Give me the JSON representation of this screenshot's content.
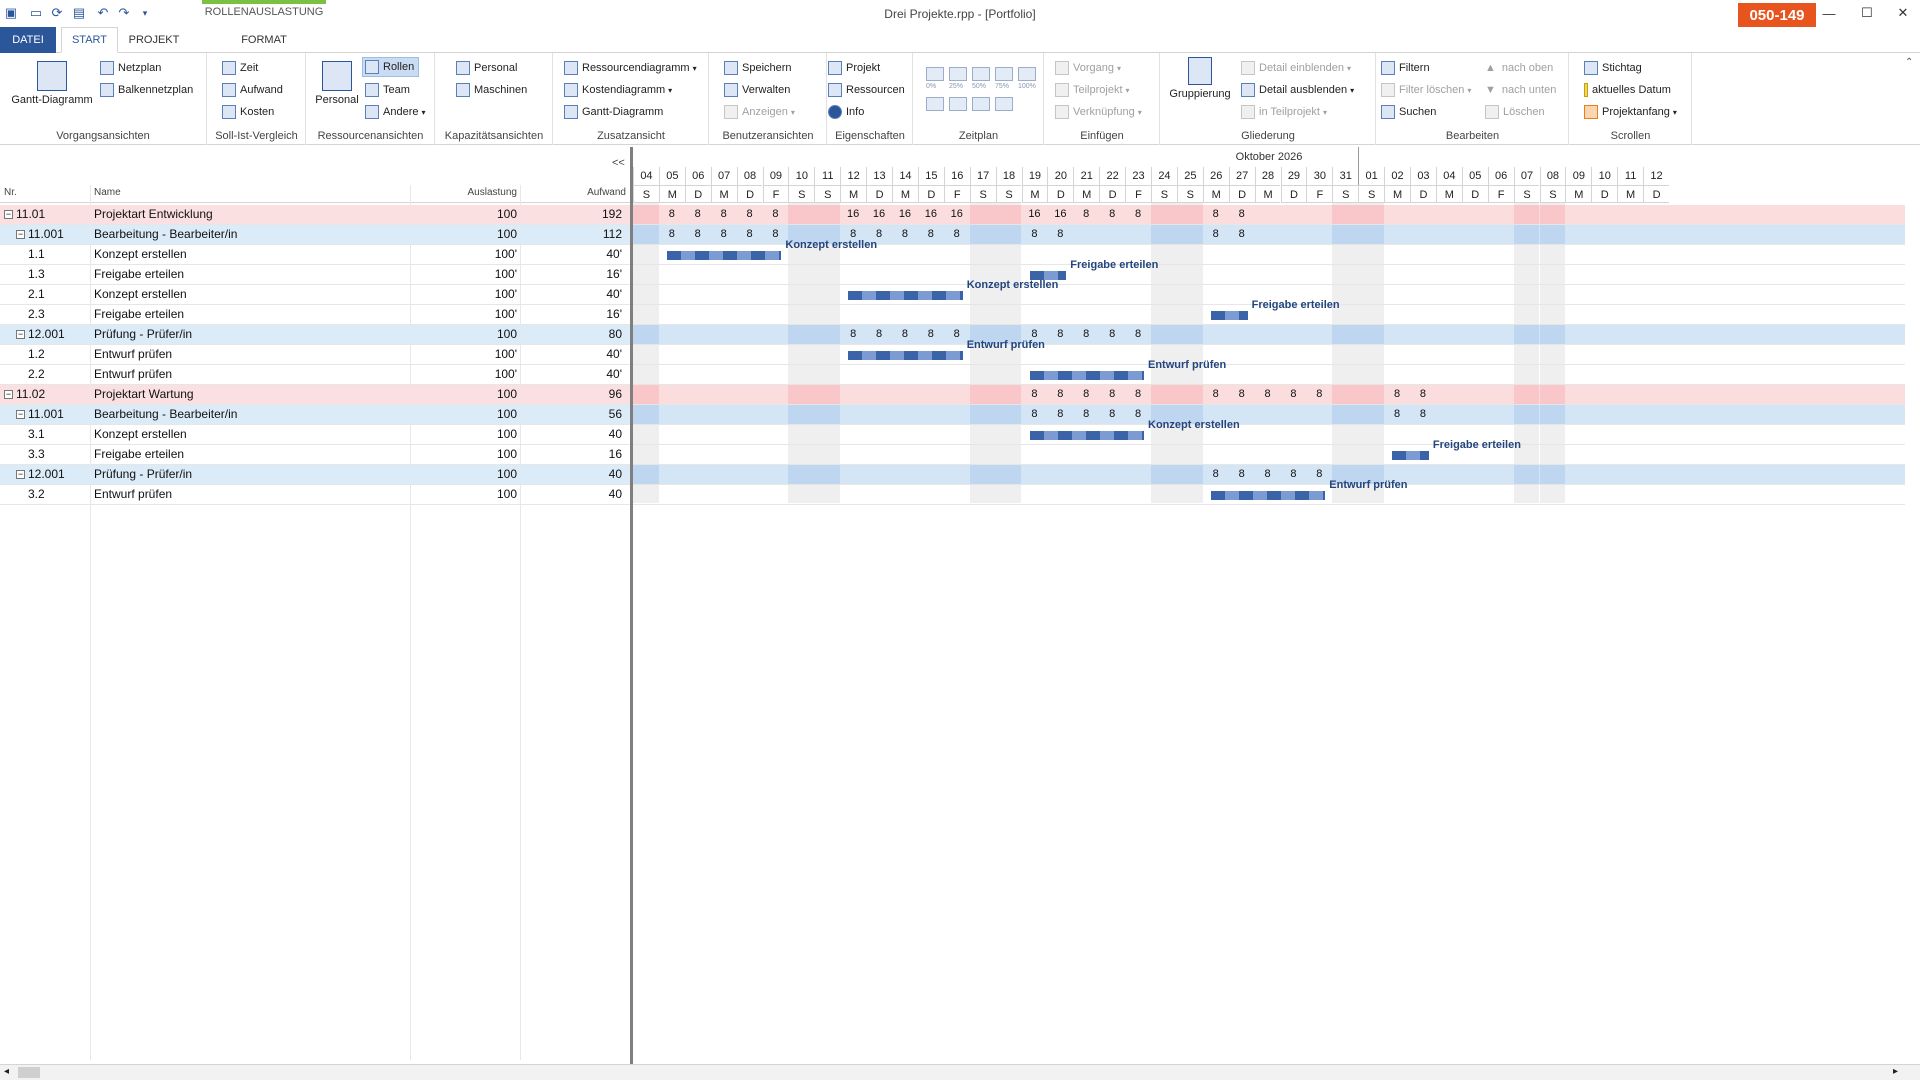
{
  "window": {
    "title": "Drei Projekte.rpp - [Portfolio]",
    "badge": "050-149",
    "context_tab": "ROLLENAUSLASTUNG"
  },
  "tabs": [
    "DATEI",
    "START",
    "PROJEKT",
    "FORMAT"
  ],
  "ribbon": {
    "groups": [
      "Vorgangsansichten",
      "Soll-Ist-Vergleich",
      "Ressourcenansichten",
      "Kapazitätsansichten",
      "Zusatzansicht",
      "Benutzeransichten",
      "Eigenschaften",
      "Zeitplan",
      "Einfügen",
      "Gliederung",
      "Bearbeiten",
      "Scrollen"
    ],
    "vorgang": {
      "gantt": "Gantt-Diagramm",
      "netzplan": "Netzplan",
      "balkennetzplan": "Balkennetzplan"
    },
    "sollist": {
      "zeit": "Zeit",
      "aufwand": "Aufwand",
      "kosten": "Kosten"
    },
    "ressourcen": {
      "personal": "Personal",
      "rollen": "Rollen",
      "team": "Team",
      "andere": "Andere"
    },
    "kapazitaet": {
      "personal": "Personal",
      "maschinen": "Maschinen"
    },
    "zusatz": {
      "ressourcendiagramm": "Ressourcendiagramm",
      "kostendiagramm": "Kostendiagramm",
      "gantt": "Gantt-Diagramm"
    },
    "benutzer": {
      "speichern": "Speichern",
      "verwalten": "Verwalten",
      "anzeigen": "Anzeigen"
    },
    "eigenschaften": {
      "projekt": "Projekt",
      "ressourcen": "Ressourcen",
      "info": "Info"
    },
    "zeitplan": {
      "p0": "0%",
      "p25": "25%",
      "p50": "50%",
      "p75": "75%",
      "p100": "100%"
    },
    "einfuegen": {
      "vorgang": "Vorgang",
      "teilprojekt": "Teilprojekt",
      "verknuepfung": "Verknüpfung"
    },
    "gliederung": {
      "gruppierung": "Gruppierung",
      "einblenden": "Detail einblenden",
      "ausblenden": "Detail ausblenden",
      "inteil": "in Teilprojekt"
    },
    "bearbeiten": {
      "filtern": "Filtern",
      "filterloeschen": "Filter löschen",
      "suchen": "Suchen",
      "nachoben": "nach oben",
      "nachunten": "nach unten",
      "loeschen": "Löschen"
    },
    "scrollen": {
      "stichtag": "Stichtag",
      "aktuell": "aktuelles Datum",
      "projektanfang": "Projektanfang"
    }
  },
  "grid": {
    "collapse": "<<",
    "columns": {
      "nr": "Nr.",
      "name": "Name",
      "auslastung": "Auslastung",
      "aufwand": "Aufwand"
    },
    "rows": [
      {
        "nr": "11.01",
        "name": "Projektart Entwicklung",
        "auslastung": "100",
        "aufwand": "192",
        "type": "proj",
        "toggle": "−"
      },
      {
        "nr": "11.001",
        "name": "Bearbeitung - Bearbeiter/in",
        "auslastung": "100",
        "aufwand": "112",
        "type": "role",
        "toggle": "−"
      },
      {
        "nr": "1.1",
        "name": "Konzept erstellen",
        "auslastung": "100'",
        "aufwand": "40'",
        "type": "task",
        "toggle": ""
      },
      {
        "nr": "1.3",
        "name": "Freigabe erteilen",
        "auslastung": "100'",
        "aufwand": "16'",
        "type": "task",
        "toggle": ""
      },
      {
        "nr": "2.1",
        "name": "Konzept erstellen",
        "auslastung": "100'",
        "aufwand": "40'",
        "type": "task",
        "toggle": ""
      },
      {
        "nr": "2.3",
        "name": "Freigabe erteilen",
        "auslastung": "100'",
        "aufwand": "16'",
        "type": "task",
        "toggle": ""
      },
      {
        "nr": "12.001",
        "name": "Prüfung - Prüfer/in",
        "auslastung": "100",
        "aufwand": "80",
        "type": "role",
        "toggle": "−"
      },
      {
        "nr": "1.2",
        "name": "Entwurf prüfen",
        "auslastung": "100'",
        "aufwand": "40'",
        "type": "task",
        "toggle": ""
      },
      {
        "nr": "2.2",
        "name": "Entwurf prüfen",
        "auslastung": "100'",
        "aufwand": "40'",
        "type": "task",
        "toggle": ""
      },
      {
        "nr": "11.02",
        "name": "Projektart Wartung",
        "auslastung": "100",
        "aufwand": "96",
        "type": "proj",
        "toggle": "−"
      },
      {
        "nr": "11.001",
        "name": "Bearbeitung - Bearbeiter/in",
        "auslastung": "100",
        "aufwand": "56",
        "type": "role",
        "toggle": "−"
      },
      {
        "nr": "3.1",
        "name": "Konzept erstellen",
        "auslastung": "100",
        "aufwand": "40",
        "type": "task",
        "toggle": ""
      },
      {
        "nr": "3.3",
        "name": "Freigabe erteilen",
        "auslastung": "100",
        "aufwand": "16",
        "type": "task",
        "toggle": ""
      },
      {
        "nr": "12.001",
        "name": "Prüfung - Prüfer/in",
        "auslastung": "100",
        "aufwand": "40",
        "type": "role",
        "toggle": "−"
      },
      {
        "nr": "3.2",
        "name": "Entwurf prüfen",
        "auslastung": "100",
        "aufwand": "40",
        "type": "task",
        "toggle": ""
      }
    ]
  },
  "gantt": {
    "month": "Oktober 2026",
    "days": [
      {
        "n": "04",
        "w": "S"
      },
      {
        "n": "05",
        "w": "M"
      },
      {
        "n": "06",
        "w": "D"
      },
      {
        "n": "07",
        "w": "M"
      },
      {
        "n": "08",
        "w": "D"
      },
      {
        "n": "09",
        "w": "F"
      },
      {
        "n": "10",
        "w": "S"
      },
      {
        "n": "11",
        "w": "S"
      },
      {
        "n": "12",
        "w": "M"
      },
      {
        "n": "13",
        "w": "D"
      },
      {
        "n": "14",
        "w": "M"
      },
      {
        "n": "15",
        "w": "D"
      },
      {
        "n": "16",
        "w": "F"
      },
      {
        "n": "17",
        "w": "S"
      },
      {
        "n": "18",
        "w": "S"
      },
      {
        "n": "19",
        "w": "M"
      },
      {
        "n": "20",
        "w": "D"
      },
      {
        "n": "21",
        "w": "M"
      },
      {
        "n": "22",
        "w": "D"
      },
      {
        "n": "23",
        "w": "F"
      },
      {
        "n": "24",
        "w": "S"
      },
      {
        "n": "25",
        "w": "S"
      },
      {
        "n": "26",
        "w": "M"
      },
      {
        "n": "27",
        "w": "D"
      },
      {
        "n": "28",
        "w": "M"
      },
      {
        "n": "29",
        "w": "D"
      },
      {
        "n": "30",
        "w": "F"
      },
      {
        "n": "31",
        "w": "S"
      },
      {
        "n": "01",
        "w": "S"
      },
      {
        "n": "02",
        "w": "M"
      },
      {
        "n": "03",
        "w": "D"
      },
      {
        "n": "04",
        "w": "M"
      },
      {
        "n": "05",
        "w": "D"
      },
      {
        "n": "06",
        "w": "F"
      },
      {
        "n": "07",
        "w": "S"
      },
      {
        "n": "08",
        "w": "S"
      },
      {
        "n": "09",
        "w": "M"
      },
      {
        "n": "10",
        "w": "D"
      },
      {
        "n": "11",
        "w": "M"
      },
      {
        "n": "12",
        "w": "D"
      }
    ],
    "row_values": [
      [
        null,
        8,
        8,
        8,
        8,
        8,
        null,
        null,
        16,
        16,
        16,
        16,
        16,
        null,
        null,
        16,
        16,
        8,
        8,
        8,
        null,
        null,
        8,
        8
      ],
      [
        null,
        8,
        8,
        8,
        8,
        8,
        null,
        null,
        8,
        8,
        8,
        8,
        8,
        null,
        null,
        8,
        8,
        null,
        null,
        null,
        null,
        null,
        8,
        8
      ],
      [],
      [],
      [],
      [],
      [
        null,
        null,
        null,
        null,
        null,
        null,
        null,
        null,
        8,
        8,
        8,
        8,
        8,
        null,
        null,
        8,
        8,
        8,
        8,
        8
      ],
      [],
      [],
      [
        null,
        null,
        null,
        null,
        null,
        null,
        null,
        null,
        null,
        null,
        null,
        null,
        null,
        null,
        null,
        8,
        8,
        8,
        8,
        8,
        null,
        null,
        8,
        8,
        8,
        8,
        8,
        null,
        null,
        8,
        8
      ],
      [
        null,
        null,
        null,
        null,
        null,
        null,
        null,
        null,
        null,
        null,
        null,
        null,
        null,
        null,
        null,
        8,
        8,
        8,
        8,
        8,
        null,
        null,
        null,
        null,
        null,
        null,
        null,
        null,
        null,
        8,
        8
      ],
      [],
      [],
      [
        null,
        null,
        null,
        null,
        null,
        null,
        null,
        null,
        null,
        null,
        null,
        null,
        null,
        null,
        null,
        null,
        null,
        null,
        null,
        null,
        null,
        null,
        8,
        8,
        8,
        8,
        8
      ],
      []
    ],
    "bars": [
      {
        "row": 2,
        "start": 1,
        "end": 5,
        "label": "Konzept erstellen"
      },
      {
        "row": 3,
        "start": 15,
        "end": 16,
        "label": "Freigabe erteilen"
      },
      {
        "row": 4,
        "start": 8,
        "end": 12,
        "label": "Konzept erstellen"
      },
      {
        "row": 5,
        "start": 22,
        "end": 23,
        "label": "Freigabe erteilen"
      },
      {
        "row": 7,
        "start": 8,
        "end": 12,
        "label": "Entwurf prüfen"
      },
      {
        "row": 8,
        "start": 15,
        "end": 19,
        "label": "Entwurf prüfen"
      },
      {
        "row": 11,
        "start": 15,
        "end": 19,
        "label": "Konzept erstellen"
      },
      {
        "row": 12,
        "start": 29,
        "end": 30,
        "label": "Freigabe erteilen"
      },
      {
        "row": 14,
        "start": 22,
        "end": 26,
        "label": "Entwurf prüfen"
      }
    ]
  },
  "colors": {
    "accent": "#2b579a",
    "badge": "#e8541e",
    "project_row": "#fbe0e1",
    "role_row": "#dcebf8",
    "bar": "#3b63a8"
  }
}
